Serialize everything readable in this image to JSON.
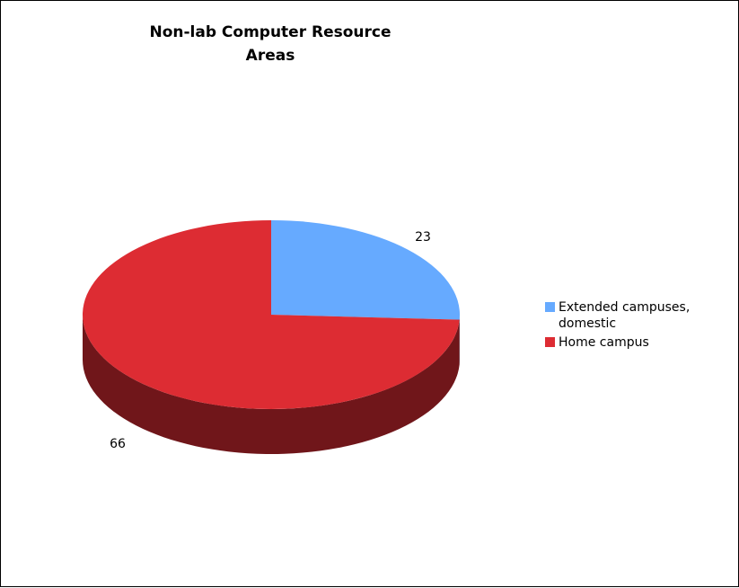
{
  "chart_data": {
    "type": "pie",
    "title": "Non-lab Computer Resource\nAreas",
    "categories": [
      "Extended campuses, domestic",
      "Home campus"
    ],
    "values": [
      23,
      66
    ],
    "colors": [
      "#66aaff",
      "#dd2c33"
    ],
    "side_colors": [
      "#3d6699",
      "#70161a"
    ],
    "three_d": true,
    "legend_position": "right"
  }
}
